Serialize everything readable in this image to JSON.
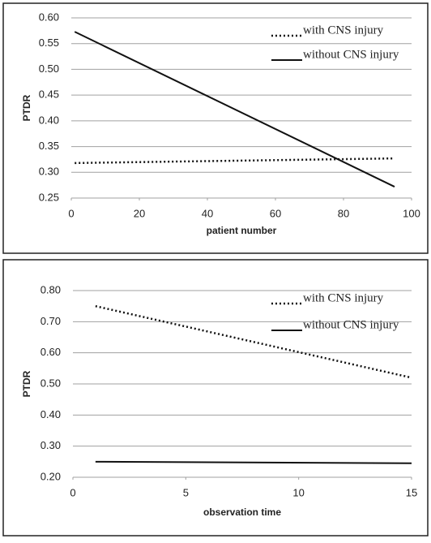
{
  "chart_data": [
    {
      "type": "line",
      "x_label": "patient number",
      "y_label": "PTDR",
      "legend": "upper right",
      "grid": true,
      "x": [
        1,
        95
      ],
      "series": [
        {
          "name": "with CNS injury",
          "color": "#111111",
          "style": "dotted",
          "values": [
            0.318,
            0.327
          ]
        },
        {
          "name": "without CNS injury",
          "color": "#111111",
          "style": "solid",
          "values": [
            0.573,
            0.272
          ]
        }
      ],
      "xlim": [
        0,
        100
      ],
      "xticks": [
        0,
        20,
        40,
        60,
        80,
        100
      ],
      "ylim": [
        0.25,
        0.6
      ],
      "yticks": [
        {
          "value": 0.25,
          "label": "0.25"
        },
        {
          "value": 0.3,
          "label": "0.30"
        },
        {
          "value": 0.35,
          "label": "0.35"
        },
        {
          "value": 0.4,
          "label": "0.40"
        },
        {
          "value": 0.45,
          "label": "0.45"
        },
        {
          "value": 0.5,
          "label": "0.50"
        },
        {
          "value": 0.55,
          "label": "0.55"
        },
        {
          "value": 0.6,
          "label": "0.60"
        }
      ]
    },
    {
      "type": "line",
      "x_label": "observation time",
      "y_label": "PTDR",
      "legend": "upper right",
      "grid": true,
      "x": [
        1,
        15
      ],
      "series": [
        {
          "name": "with CNS injury",
          "color": "#111111",
          "style": "dotted",
          "values": [
            0.75,
            0.52
          ]
        },
        {
          "name": "without CNS injury",
          "color": "#111111",
          "style": "solid",
          "values": [
            0.25,
            0.245
          ]
        }
      ],
      "xlim": [
        0,
        15
      ],
      "xticks": [
        0,
        5,
        10,
        15
      ],
      "ylim": [
        0.2,
        0.8
      ],
      "yticks": [
        {
          "value": 0.2,
          "label": "0.20"
        },
        {
          "value": 0.3,
          "label": "0.30"
        },
        {
          "value": 0.4,
          "label": "0.40"
        },
        {
          "value": 0.5,
          "label": "0.50"
        },
        {
          "value": 0.6,
          "label": "0.60"
        },
        {
          "value": 0.7,
          "label": "0.70"
        },
        {
          "value": 0.8,
          "label": "0.80"
        }
      ]
    }
  ]
}
